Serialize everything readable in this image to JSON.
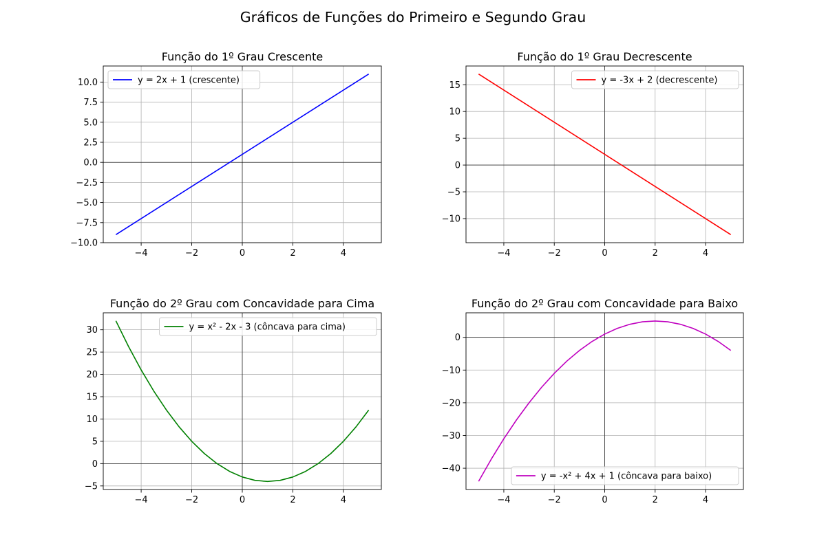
{
  "figure_title": "Gráficos de Funções do Primeiro e Segundo Grau",
  "colors": {
    "blue": "#0000ff",
    "red": "#ff0000",
    "green": "#008000",
    "magenta": "#bf00bf"
  },
  "chart_data": [
    {
      "type": "line",
      "title": "Função do 1º Grau Crescente",
      "xlabel": "",
      "ylabel": "",
      "xlim": [
        -5.5,
        5.5
      ],
      "ylim": [
        -10,
        12
      ],
      "xticks": [
        -4,
        -2,
        0,
        2,
        4
      ],
      "xtick_labels": [
        "−4",
        "−2",
        "0",
        "2",
        "4"
      ],
      "yticks": [
        -10,
        -7.5,
        -5,
        -2.5,
        0,
        2.5,
        5,
        7.5,
        10
      ],
      "ytick_labels": [
        "−10.0",
        "−7.5",
        "−5.0",
        "−2.5",
        "0.0",
        "2.5",
        "5.0",
        "7.5",
        "10.0"
      ],
      "grid": true,
      "legend_position": "upper-left",
      "series": [
        {
          "name": "y = 2x + 1 (crescente)",
          "color": "#0000ff",
          "x": [
            -5,
            5
          ],
          "y": [
            -9,
            11
          ]
        }
      ]
    },
    {
      "type": "line",
      "title": "Função do 1º Grau Decrescente",
      "xlabel": "",
      "ylabel": "",
      "xlim": [
        -5.5,
        5.5
      ],
      "ylim": [
        -14.5,
        18.5
      ],
      "xticks": [
        -4,
        -2,
        0,
        2,
        4
      ],
      "xtick_labels": [
        "−4",
        "−2",
        "0",
        "2",
        "4"
      ],
      "yticks": [
        -10,
        -5,
        0,
        5,
        10,
        15
      ],
      "ytick_labels": [
        "−10",
        "−5",
        "0",
        "5",
        "10",
        "15"
      ],
      "grid": true,
      "legend_position": "upper-right",
      "series": [
        {
          "name": "y = -3x + 2 (decrescente)",
          "color": "#ff0000",
          "x": [
            -5,
            5
          ],
          "y": [
            17,
            -13
          ]
        }
      ]
    },
    {
      "type": "line",
      "title": "Função do 2º Grau com Concavidade para Cima",
      "xlabel": "",
      "ylabel": "",
      "xlim": [
        -5.5,
        5.5
      ],
      "ylim": [
        -5.8,
        33.8
      ],
      "xticks": [
        -4,
        -2,
        0,
        2,
        4
      ],
      "xtick_labels": [
        "−4",
        "−2",
        "0",
        "2",
        "4"
      ],
      "yticks": [
        -5,
        0,
        5,
        10,
        15,
        20,
        25,
        30
      ],
      "ytick_labels": [
        "−5",
        "0",
        "5",
        "10",
        "15",
        "20",
        "25",
        "30"
      ],
      "grid": true,
      "legend_position": "upper-right",
      "series": [
        {
          "name": "y = x² - 2x - 3 (côncava para cima)",
          "color": "#008000",
          "x": [
            -5,
            -4.5,
            -4,
            -3.5,
            -3,
            -2.5,
            -2,
            -1.5,
            -1,
            -0.5,
            0,
            0.5,
            1,
            1.5,
            2,
            2.5,
            3,
            3.5,
            4,
            4.5,
            5
          ],
          "y": [
            32,
            26.25,
            21,
            16.25,
            12,
            8.25,
            5,
            2.25,
            0,
            -1.75,
            -3,
            -3.75,
            -4,
            -3.75,
            -3,
            -1.75,
            0,
            2.25,
            5,
            8.25,
            12
          ]
        }
      ]
    },
    {
      "type": "line",
      "title": "Função do 2º Grau com Concavidade para Baixo",
      "xlabel": "",
      "ylabel": "",
      "xlim": [
        -5.5,
        5.5
      ],
      "ylim": [
        -46.5,
        7.5
      ],
      "xticks": [
        -4,
        -2,
        0,
        2,
        4
      ],
      "xtick_labels": [
        "−4",
        "−2",
        "0",
        "2",
        "4"
      ],
      "yticks": [
        -40,
        -30,
        -20,
        -10,
        0
      ],
      "ytick_labels": [
        "−40",
        "−30",
        "−20",
        "−10",
        "0"
      ],
      "grid": true,
      "legend_position": "lower-right",
      "series": [
        {
          "name": "y = -x² + 4x + 1 (côncava para baixo)",
          "color": "#bf00bf",
          "x": [
            -5,
            -4.5,
            -4,
            -3.5,
            -3,
            -2.5,
            -2,
            -1.5,
            -1,
            -0.5,
            0,
            0.5,
            1,
            1.5,
            2,
            2.5,
            3,
            3.5,
            4,
            4.5,
            5
          ],
          "y": [
            -44,
            -37.25,
            -31,
            -25.25,
            -20,
            -15.25,
            -11,
            -7.25,
            -4,
            -1.25,
            1,
            2.75,
            4,
            4.75,
            5,
            4.75,
            4,
            2.75,
            1,
            -1.25,
            -4
          ]
        }
      ]
    }
  ]
}
